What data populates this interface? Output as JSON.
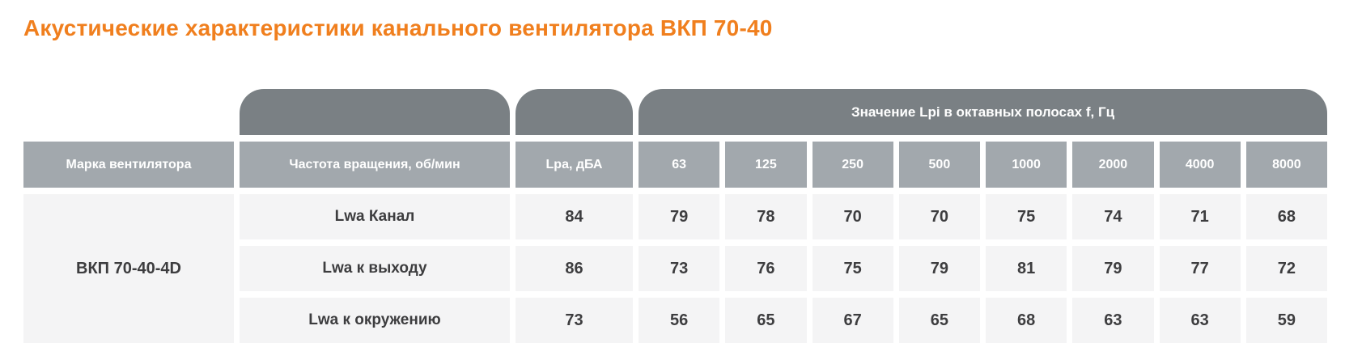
{
  "page": {
    "title": "Акустические характеристики канального вентилятора ВКП 70-40"
  },
  "colors": {
    "accent_orange": "#f07f1e",
    "cap_gray": "#7a8084",
    "header_gray": "#a2a8ad",
    "cell_gray": "#f4f4f5",
    "text_dark": "#3d3d3f"
  },
  "table": {
    "octave_group_header": "Значение Lpi в октавных полосах f, Гц",
    "headers": {
      "fan_brand": "Марка вентилятора",
      "rotation_speed": "Частота вращения, об/мин",
      "lpa": "Lpa, дБА",
      "frequencies": [
        "63",
        "125",
        "250",
        "500",
        "1000",
        "2000",
        "4000",
        "8000"
      ]
    },
    "fan_model": "ВКП 70-40-4D",
    "rows": [
      {
        "label": "Lwa Канал",
        "lpa": "84",
        "values": [
          "79",
          "78",
          "70",
          "70",
          "75",
          "74",
          "71",
          "68"
        ]
      },
      {
        "label": "Lwa к выходу",
        "lpa": "86",
        "values": [
          "73",
          "76",
          "75",
          "79",
          "81",
          "79",
          "77",
          "72"
        ]
      },
      {
        "label": "Lwa к окружению",
        "lpa": "73",
        "values": [
          "56",
          "65",
          "67",
          "65",
          "68",
          "63",
          "63",
          "59"
        ]
      }
    ]
  }
}
